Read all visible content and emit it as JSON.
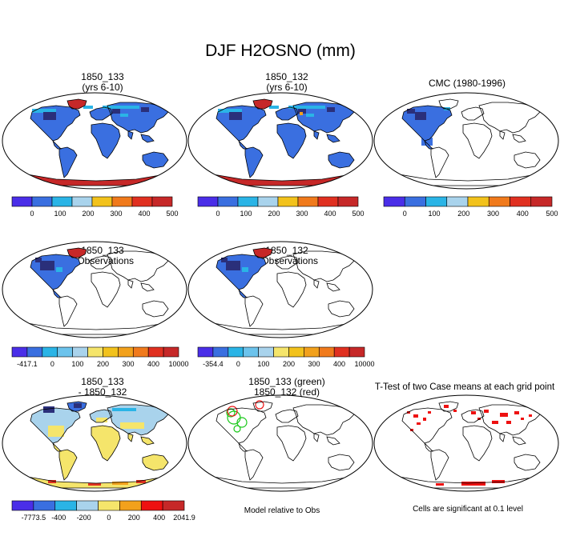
{
  "title": "DJF H2OSNO (mm)",
  "colors": {
    "land_outline": "#000000",
    "snow_deep": "#2a2f7a",
    "blue_main": "#3a6fe0",
    "cyan": "#2ab4e6",
    "light_blue": "#a9d3ec",
    "pale_yellow": "#f5e56b",
    "orange": "#f2a11c",
    "red": "#e03020",
    "dark_red": "#c62828",
    "purple": "#4a2ee8",
    "green": "#18c818",
    "signif_red": "#ee1111"
  },
  "panels": [
    {
      "id": "p1",
      "title_line1": "1850_133",
      "title_line2": "(yrs 6-10)",
      "fill": "case133"
    },
    {
      "id": "p2",
      "title_line1": "1850_132",
      "title_line2": "(yrs 6-10)",
      "fill": "case132"
    },
    {
      "id": "p3",
      "title_line1": "CMC (1980-1996)",
      "title_line2": "",
      "fill": "obs"
    },
    {
      "id": "p4",
      "title_line1": "1850_133",
      "title_line2": "- Observations",
      "fill": "diff133"
    },
    {
      "id": "p5",
      "title_line1": "1850_132",
      "title_line2": "- Observations",
      "fill": "diff132"
    },
    {
      "id": "p7",
      "title_line1": "1850_133",
      "title_line2": "- 1850_132",
      "fill": "diffcases"
    },
    {
      "id": "p8",
      "title_line1": "1850_133 (green)",
      "title_line2": "1850_132 (red)",
      "fill": "contours"
    },
    {
      "id": "p9",
      "title_line1": "T-Test of two Case means at each grid point",
      "title_line2": "",
      "fill": "ttest"
    }
  ],
  "colorbars": {
    "abs": {
      "colors": [
        "#4a2ee8",
        "#3a6fe0",
        "#2ab4e6",
        "#a9d3ec",
        "#f2c21c",
        "#f07a1c",
        "#e03020",
        "#c62828"
      ],
      "labels": [
        "0",
        "100",
        "200",
        "300",
        "400",
        "500"
      ]
    },
    "diff_obs_133": {
      "colors": [
        "#4a2ee8",
        "#3a6fe0",
        "#2ab4e6",
        "#6cc3ec",
        "#a9d3ec",
        "#f5e56b",
        "#f2c21c",
        "#f2a11c",
        "#f07a1c",
        "#e03020",
        "#c62828"
      ],
      "labels": [
        "-417.1",
        "0",
        "100",
        "200",
        "300",
        "400",
        "10000"
      ]
    },
    "diff_obs_132": {
      "colors": [
        "#4a2ee8",
        "#3a6fe0",
        "#2ab4e6",
        "#6cc3ec",
        "#a9d3ec",
        "#f5e56b",
        "#f2c21c",
        "#f2a11c",
        "#f07a1c",
        "#e03020",
        "#c62828"
      ],
      "labels": [
        "-354.4",
        "0",
        "100",
        "200",
        "300",
        "400",
        "10000"
      ]
    },
    "diff_cases": {
      "colors": [
        "#4a2ee8",
        "#3a6fe0",
        "#2ab4e6",
        "#a9d3ec",
        "#f5e56b",
        "#f2a11c",
        "#ee1111",
        "#c62828"
      ],
      "labels": [
        "-7773.5",
        "-400",
        "-200",
        "0",
        "200",
        "400",
        "2041.9"
      ]
    }
  },
  "notes": {
    "model_relative": "Model relative to Obs",
    "significance": "Cells are significant at 0.1 level"
  }
}
